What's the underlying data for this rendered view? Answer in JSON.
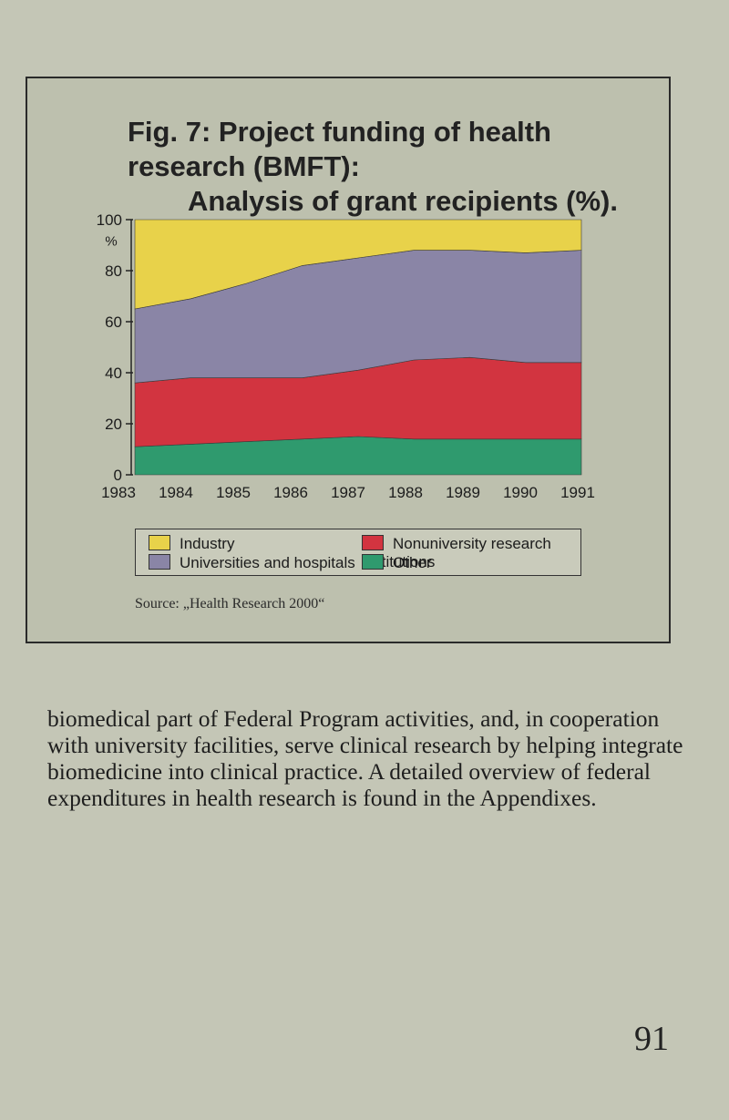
{
  "figure": {
    "title_line1": "Fig. 7: Project funding of health research (BMFT):",
    "title_line2": "Analysis of grant recipients (%).",
    "source": "Source: „Health Research 2000“"
  },
  "legend": {
    "items": [
      {
        "label": "Industry",
        "color": "#e8d24a"
      },
      {
        "label": "Nonuniversity research institutions",
        "color": "#d23440"
      },
      {
        "label": "Universities and hospitals",
        "color": "#8a85a6"
      },
      {
        "label": "Other",
        "color": "#2f9a6e"
      }
    ]
  },
  "chart_data": {
    "type": "area",
    "stacked": true,
    "x": [
      "1983",
      "1984",
      "1985",
      "1986",
      "1987",
      "1988",
      "1989",
      "1990",
      "1991"
    ],
    "y_axis_unit": "%",
    "ylim": [
      0,
      100
    ],
    "y_ticks": [
      0,
      20,
      40,
      60,
      80,
      100
    ],
    "grid": false,
    "stack_order": [
      "Other",
      "Nonuniversity research institutions",
      "Universities and hospitals",
      "Industry"
    ],
    "series": [
      {
        "name": "Other",
        "color": "#2f9a6e",
        "values": [
          11,
          12,
          13,
          14,
          15,
          14,
          14,
          14,
          14
        ]
      },
      {
        "name": "Nonuniversity research institutions",
        "color": "#d23440",
        "values": [
          25,
          26,
          25,
          24,
          26,
          31,
          32,
          30,
          30
        ]
      },
      {
        "name": "Universities and hospitals",
        "color": "#8a85a6",
        "values": [
          29,
          31,
          37,
          44,
          44,
          43,
          42,
          43,
          44
        ]
      },
      {
        "name": "Industry",
        "color": "#e8d24a",
        "values": [
          35,
          31,
          25,
          18,
          15,
          12,
          12,
          13,
          12
        ]
      }
    ]
  },
  "paragraph": "biomedical part of Federal Program activities, and, in cooperation with university facilities, serve clinical research by helping integrate biomedicine into clinical practice. A detailed overview of federal expenditures in health research is found in the Appendixes.",
  "page_number": "91"
}
